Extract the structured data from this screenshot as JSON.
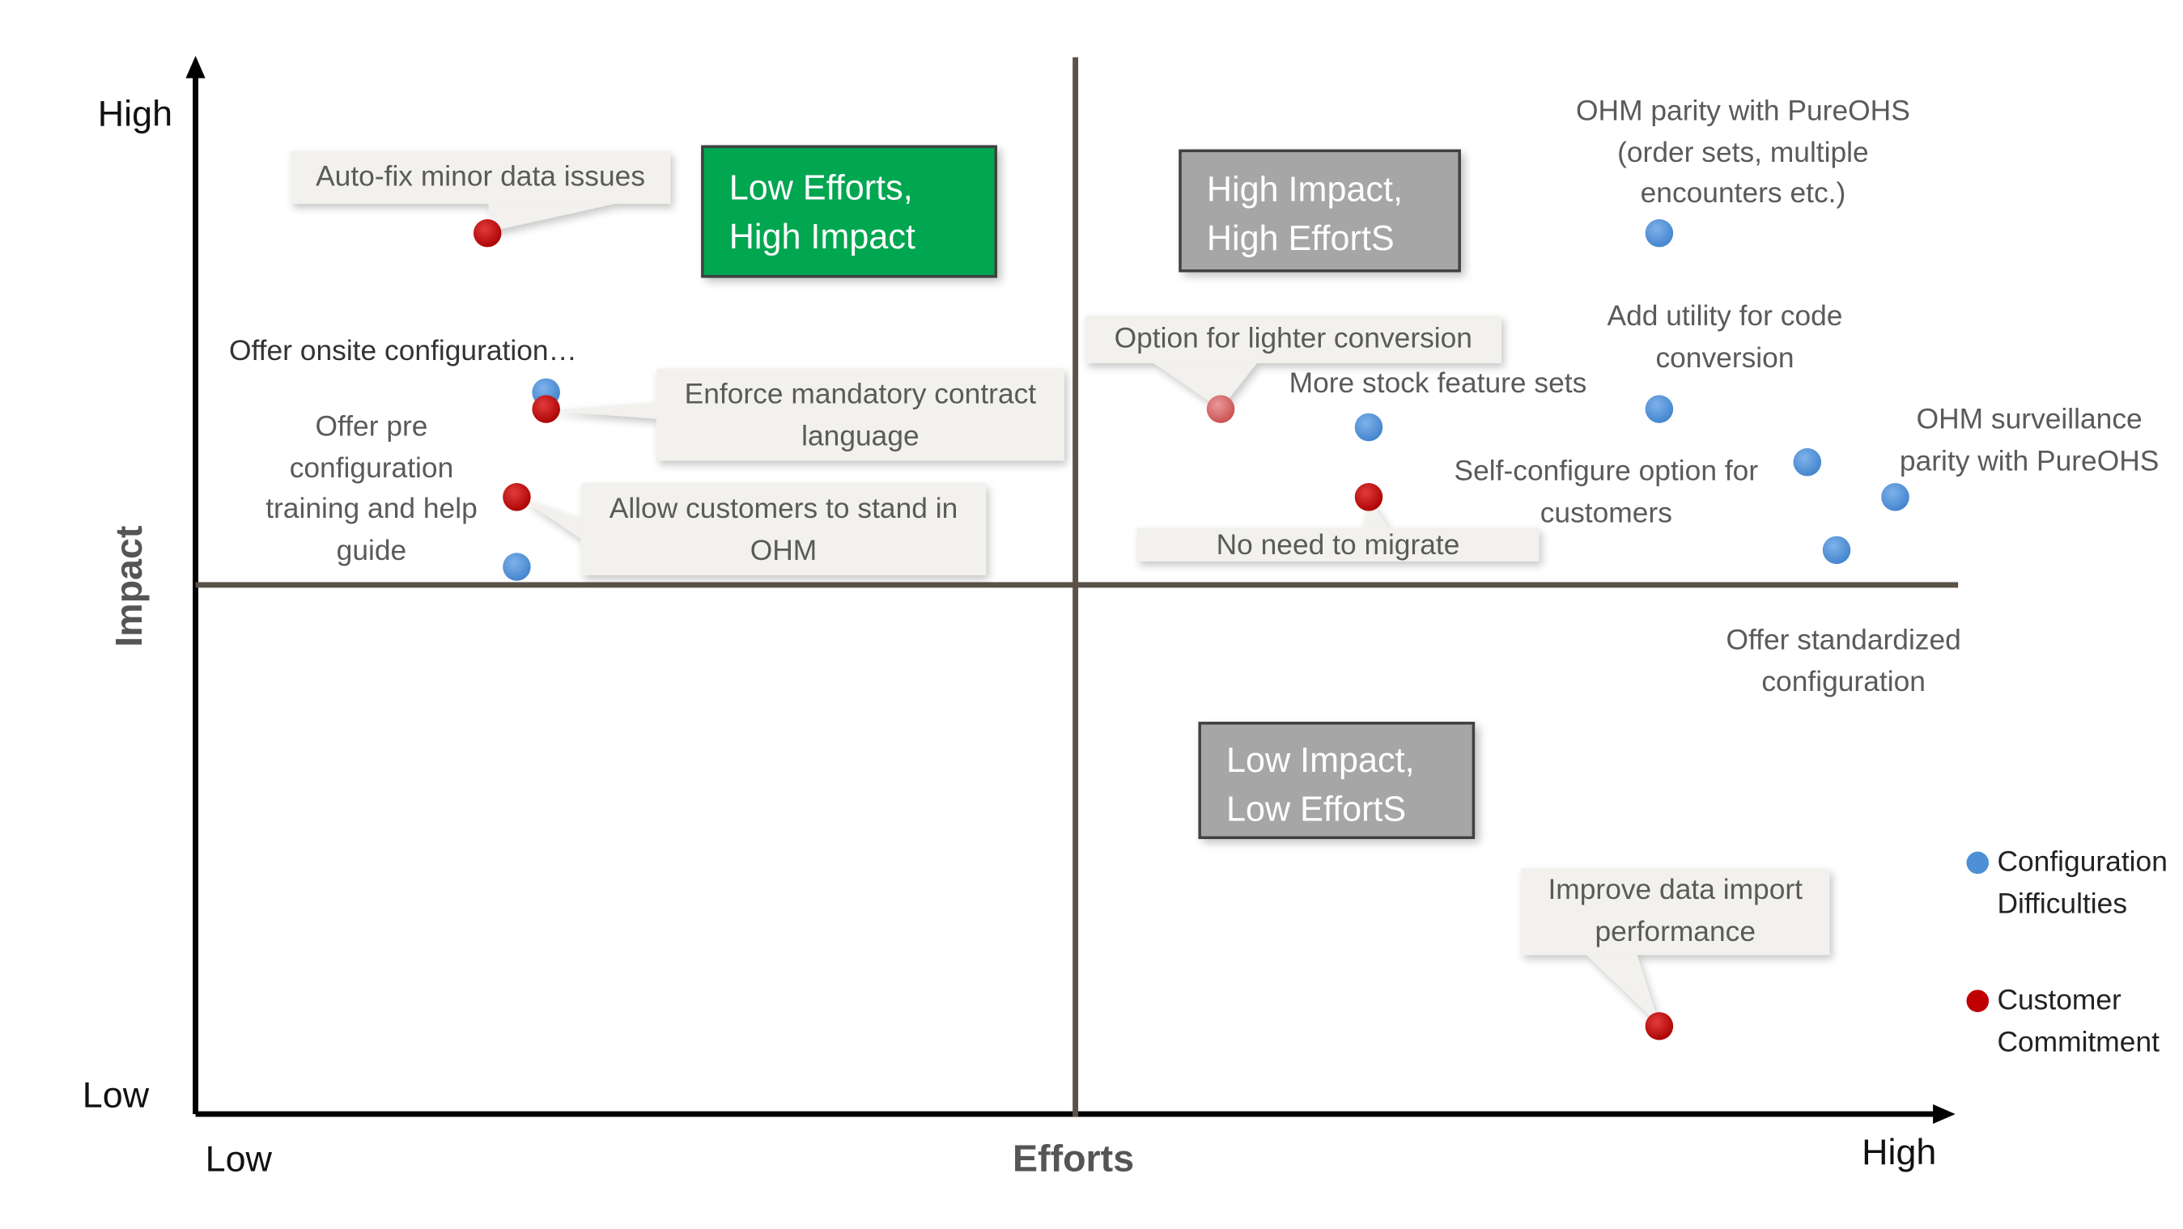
{
  "axes": {
    "y_title": "Impact",
    "x_title": "Efforts",
    "y_high": "High",
    "y_low": "Low",
    "x_low": "Low",
    "x_high": "High"
  },
  "quadrants": {
    "low_effort_high_impact": [
      "Low Efforts,",
      "High Impact"
    ],
    "high_impact_high_effort": [
      "High Impact,",
      "High EffortS"
    ],
    "low_impact_low_effort": [
      "Low Impact,",
      "Low EffortS"
    ]
  },
  "colors": {
    "axis_line": "#5a5148",
    "config_point": "#4e90d6",
    "commitment_point": "#c00000",
    "quadrant_green": "#00a650",
    "quadrant_grey": "#a6a6a6"
  },
  "labels": {
    "auto_fix": "Auto-fix minor data issues",
    "offer_onsite": "Offer onsite configuration…",
    "offer_pre": [
      "Offer pre",
      "configuration",
      "training and help",
      "guide"
    ],
    "enforce_contract": [
      "Enforce mandatory contract",
      "language"
    ],
    "allow_customers": [
      "Allow customers to stand in",
      "OHM"
    ],
    "lighter_conversion": "Option for lighter conversion",
    "stock_feature": "More stock feature sets",
    "ohm_parity": [
      "OHM parity with PureOHS",
      "(order sets, multiple",
      "encounters etc.)"
    ],
    "add_utility": [
      "Add utility for code",
      "conversion"
    ],
    "self_configure": [
      "Self-configure option for",
      "customers"
    ],
    "ohm_surveillance": [
      "OHM surveillance",
      "parity with PureOHS"
    ],
    "no_need_migrate": "No need to migrate",
    "offer_standardized": [
      "Offer standardized",
      "configuration"
    ],
    "improve_import": [
      "Improve data import",
      "performance"
    ]
  },
  "legend": {
    "configuration": [
      "Configuration",
      "Difficulties"
    ],
    "commitment": [
      "Customer",
      "Commitment"
    ]
  },
  "points": {
    "configuration_difficulties": [
      "OHM parity with PureOHS",
      "Add utility for code conversion",
      "More stock feature sets",
      "Self-configure option for customers",
      "OHM surveillance parity with PureOHS",
      "Offer standardized configuration",
      "Offer onsite configuration",
      "Offer pre configuration training and help guide"
    ],
    "customer_commitment": [
      "Auto-fix minor data issues",
      "Enforce mandatory contract language",
      "Allow customers to stand in OHM",
      "Option for lighter conversion",
      "No need to migrate",
      "Improve data import performance"
    ]
  }
}
